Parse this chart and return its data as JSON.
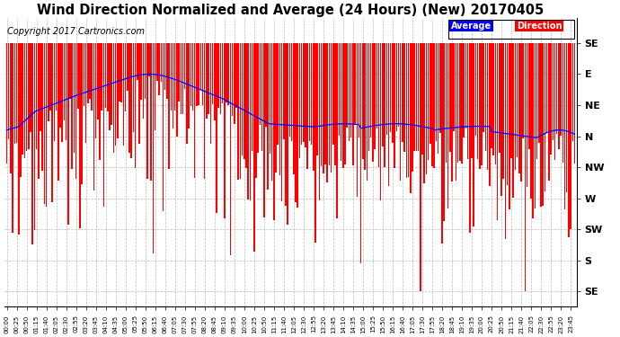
{
  "title": "Wind Direction Normalized and Average (24 Hours) (New) 20170405",
  "copyright": "Copyright 2017 Cartronics.com",
  "ytick_labels_right": [
    "SE",
    "E",
    "NE",
    "N",
    "NW",
    "W",
    "SW",
    "S",
    "SE"
  ],
  "ytick_values": [
    9,
    8,
    7,
    6,
    5,
    4,
    3,
    2,
    1
  ],
  "ylim": [
    0.5,
    9.8
  ],
  "background_color": "#ffffff",
  "plot_bg_color": "#ffffff",
  "grid_color": "#bbbbbb",
  "bar_color": "#ff0000",
  "avg_color": "#0000ff",
  "black_color": "#000000",
  "title_fontsize": 10.5,
  "copyright_fontsize": 7,
  "n_points": 288,
  "tick_step": 5
}
